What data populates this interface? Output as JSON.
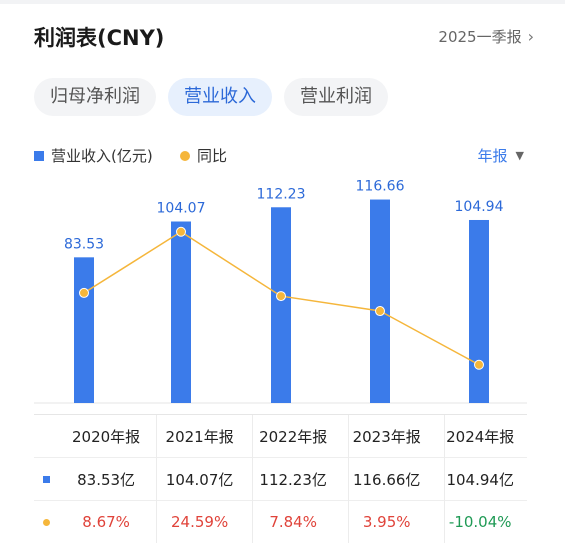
{
  "header": {
    "title": "利润表(CNY)",
    "period": "2025一季报"
  },
  "tabs": [
    {
      "label": "归母净利润",
      "active": false
    },
    {
      "label": "营业收入",
      "active": true
    },
    {
      "label": "营业利润",
      "active": false
    }
  ],
  "legend": {
    "bar_label": "营业收入(亿元)",
    "line_label": "同比",
    "period_select": "年报"
  },
  "colors": {
    "bar": "#3b7bea",
    "line": "#f5b63b",
    "positive": "#e0433a",
    "negative": "#1f9a55",
    "accent": "#2c69d8"
  },
  "chart_data": {
    "type": "bar",
    "categories": [
      "2020年报",
      "2021年报",
      "2022年报",
      "2023年报",
      "2024年报"
    ],
    "series": [
      {
        "name": "营业收入(亿元)",
        "type": "bar",
        "values": [
          83.53,
          104.07,
          112.23,
          116.66,
          104.94
        ],
        "labels": [
          "83.53",
          "104.07",
          "112.23",
          "116.66",
          "104.94"
        ]
      },
      {
        "name": "同比",
        "type": "line",
        "values": [
          8.67,
          24.59,
          7.84,
          3.95,
          -10.04
        ]
      }
    ],
    "ylim": [
      0,
      130
    ],
    "line_ylim": [
      -20,
      30
    ],
    "legend": "top-left"
  },
  "table": {
    "headers": [
      "2020年报",
      "2021年报",
      "2022年报",
      "2023年报",
      "2024年报"
    ],
    "revenue_row": [
      "83.53亿",
      "104.07亿",
      "112.23亿",
      "116.66亿",
      "104.94亿"
    ],
    "yoy_row": [
      "8.67%",
      "24.59%",
      "7.84%",
      "3.95%",
      "-10.04%"
    ]
  }
}
